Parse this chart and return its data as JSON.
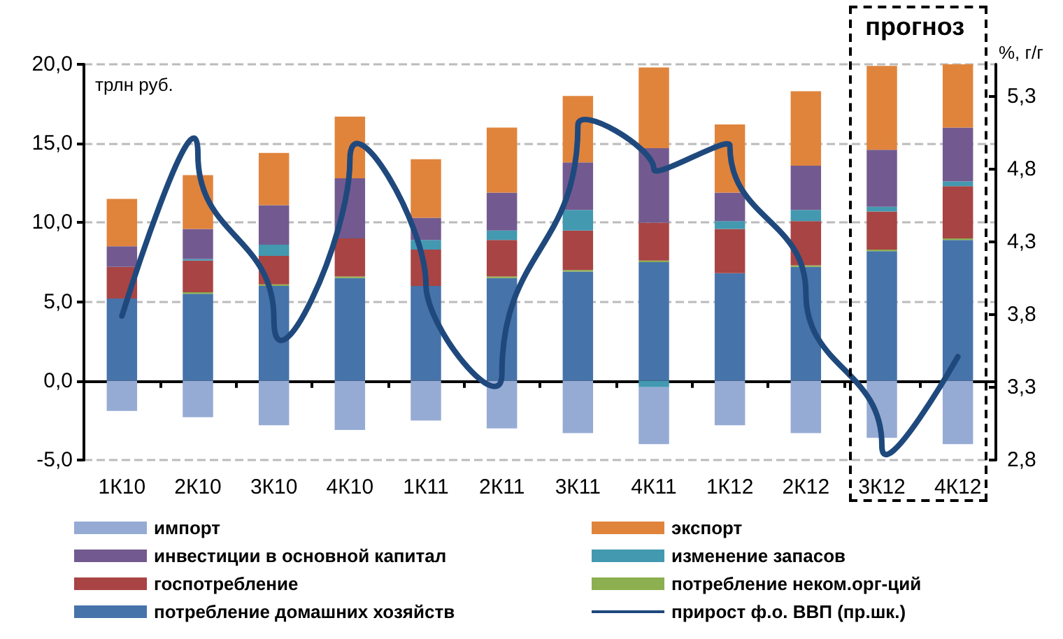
{
  "chart_data": {
    "type": "bar",
    "stacked": true,
    "ylabel": "трлн руб.",
    "y2label": "%, г/г",
    "categories": [
      "1К10",
      "2К10",
      "3К10",
      "4К10",
      "1К11",
      "2К11",
      "3К11",
      "4К11",
      "1К12",
      "2К12",
      "3К12",
      "4К12"
    ],
    "series": [
      {
        "name": "потребление домашних хозяйств",
        "color": "#4673a9",
        "values": [
          5.2,
          5.5,
          6.0,
          6.5,
          6.0,
          6.5,
          6.9,
          7.5,
          6.8,
          7.2,
          8.2,
          8.9
        ]
      },
      {
        "name": "потребление неком.орг-ций",
        "color": "#8caf4f",
        "values": [
          0,
          0.1,
          0.1,
          0.1,
          0,
          0.1,
          0.1,
          0.1,
          0,
          0.1,
          0.1,
          0.1
        ]
      },
      {
        "name": "госпотребление",
        "color": "#a84444",
        "values": [
          2.0,
          2.0,
          1.8,
          2.4,
          2.3,
          2.3,
          2.5,
          2.4,
          2.8,
          2.8,
          2.4,
          3.3
        ]
      },
      {
        "name": "изменение запасов",
        "color": "#4299b0",
        "values": [
          0,
          0.1,
          0.7,
          0,
          0.6,
          0.6,
          1.3,
          -0.4,
          0.5,
          0.7,
          0.3,
          0.3
        ]
      },
      {
        "name": "инвестиции в основной капитал",
        "color": "#725a90",
        "values": [
          1.3,
          1.9,
          2.5,
          3.8,
          1.4,
          2.4,
          3.0,
          4.7,
          1.8,
          2.8,
          3.6,
          3.4
        ]
      },
      {
        "name": "экспорт",
        "color": "#e0843c",
        "values": [
          3.0,
          3.4,
          3.3,
          3.9,
          3.7,
          4.1,
          4.2,
          5.1,
          4.3,
          4.7,
          5.3,
          4.0
        ]
      },
      {
        "name": "импорт",
        "color": "#95abd4",
        "values": [
          -1.9,
          -2.3,
          -2.8,
          -3.1,
          -2.5,
          -3.0,
          -3.3,
          -3.6,
          -2.8,
          -3.3,
          -3.6,
          -4.0
        ]
      },
      {
        "name": "прирост ф.о. ВВП (пр.шк.)",
        "type": "line",
        "axis": "y2",
        "color": "#1f497d",
        "values": [
          3.79,
          4.9,
          3.77,
          4.86,
          4.01,
          3.39,
          5.1,
          4.8,
          4.96,
          3.95,
          2.9,
          3.51
        ]
      }
    ],
    "ylim": [
      -5,
      20
    ],
    "yticks": [
      {
        "value": -5,
        "label": "-5,0"
      },
      {
        "value": 0,
        "label": "0,0"
      },
      {
        "value": 5,
        "label": "5,0"
      },
      {
        "value": 10,
        "label": "10,0"
      },
      {
        "value": 15,
        "label": "15,0"
      },
      {
        "value": 20,
        "label": "20,0"
      }
    ],
    "y2lim": [
      2.8,
      5.52
    ],
    "y2ticks": [
      {
        "value": 2.8,
        "label": "2,8"
      },
      {
        "value": 3.3,
        "label": "3,3"
      },
      {
        "value": 3.8,
        "label": "3,8"
      },
      {
        "value": 4.3,
        "label": "4,3"
      },
      {
        "value": 4.8,
        "label": "4,8"
      },
      {
        "value": 5.3,
        "label": "5,3"
      }
    ],
    "annotations": [
      "прогноз"
    ],
    "grid": "y",
    "legend": "bottom",
    "marker": "none",
    "line_style": "solid"
  }
}
